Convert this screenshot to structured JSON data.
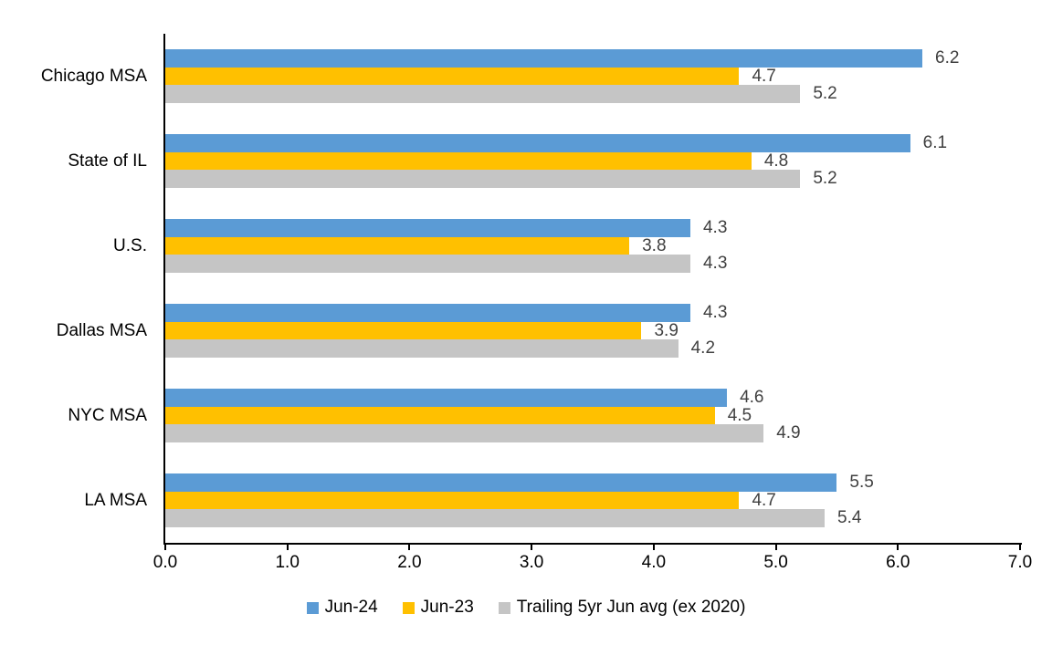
{
  "chart_data": {
    "type": "bar",
    "orientation": "horizontal",
    "title": "",
    "categories": [
      "Chicago MSA",
      "State of IL",
      "U.S.",
      "Dallas MSA",
      "NYC MSA",
      "LA MSA"
    ],
    "series": [
      {
        "name": "Jun-24",
        "color": "#5B9BD5",
        "values": [
          6.2,
          6.1,
          4.3,
          4.3,
          4.6,
          5.5
        ]
      },
      {
        "name": "Jun-23",
        "color": "#FFC000",
        "values": [
          4.7,
          4.8,
          3.8,
          3.9,
          4.5,
          4.7
        ]
      },
      {
        "name": "Trailing 5yr Jun avg (ex 2020)",
        "color": "#C5C5C5",
        "values": [
          5.2,
          5.2,
          4.3,
          4.2,
          4.9,
          5.4
        ]
      }
    ],
    "xlim": [
      0.0,
      7.0
    ],
    "x_ticks": [
      "0.0",
      "1.0",
      "2.0",
      "3.0",
      "4.0",
      "5.0",
      "6.0",
      "7.0"
    ],
    "grid": false,
    "data_labels": true,
    "legend_position": "bottom",
    "colors": {
      "axis": "#000000",
      "category_label": "#000000",
      "tick_label": "#000000",
      "value_label": "#404040",
      "background": "#FFFFFF"
    }
  }
}
